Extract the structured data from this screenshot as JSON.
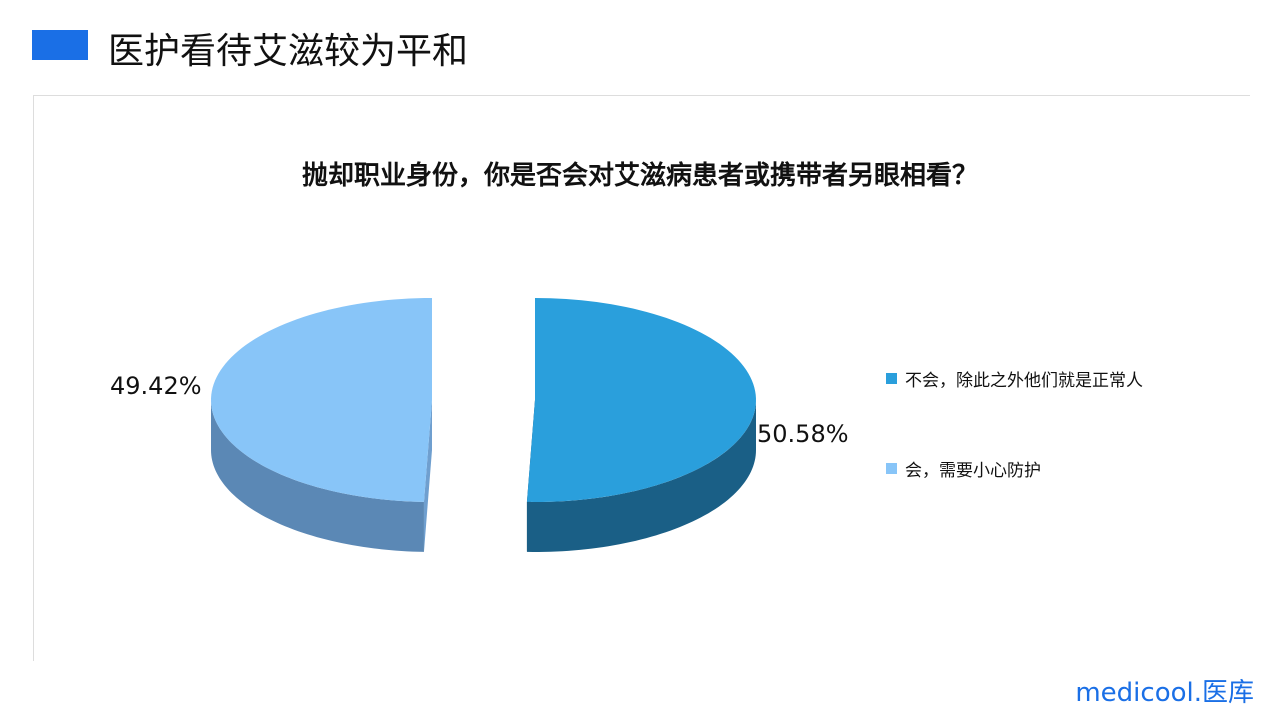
{
  "page_title": "医护看待艾滋较为平和",
  "logo": "medicool.医库",
  "chart_data": {
    "type": "pie",
    "title": "抛却职业身份，你是否会对艾滋病患者或携带者另眼相看？",
    "categories": [
      "不会，除此之外他们就是正常人",
      "会，需要小心防护"
    ],
    "values": [
      50.58,
      49.42
    ],
    "labels": [
      "50.58%",
      "49.42%"
    ],
    "colors": [
      "#2a9fdc",
      "#88c5f8"
    ],
    "style": "3d-exploded",
    "legend": "right"
  }
}
